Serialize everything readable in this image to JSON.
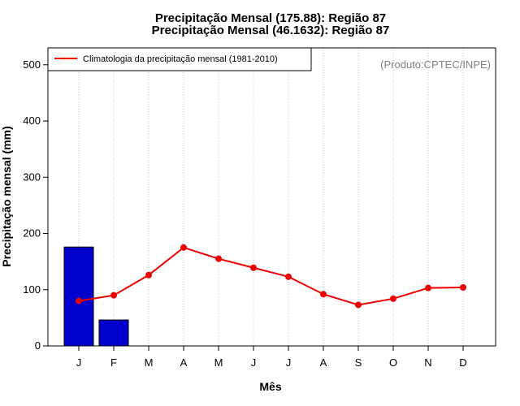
{
  "chart_data": {
    "type": "bar+line",
    "title_lines": [
      "Precipitação Mensal (175.88): Região 87",
      "Precipitação Mensal (46.1632): Região 87"
    ],
    "xlabel": "Mês",
    "ylabel": "Precipitação mensal (mm)",
    "categories": [
      "J",
      "F",
      "M",
      "A",
      "M",
      "J",
      "J",
      "A",
      "S",
      "O",
      "N",
      "D"
    ],
    "ylim": [
      0,
      530
    ],
    "yticks": [
      0,
      100,
      200,
      300,
      400,
      500
    ],
    "bars": {
      "color": "#0000cc",
      "values": [
        175.88,
        46.1632
      ]
    },
    "line": {
      "name": "Climatologia da precipitação mensal (1981-2010)",
      "color": "#ee0000",
      "values": [
        80,
        90,
        126,
        175,
        155,
        139,
        123,
        92,
        73,
        84,
        103,
        104
      ]
    },
    "grid": "vertical-dotted",
    "legend_position": "top-left",
    "credit": "(Produto:CPTEC/INPE)"
  }
}
